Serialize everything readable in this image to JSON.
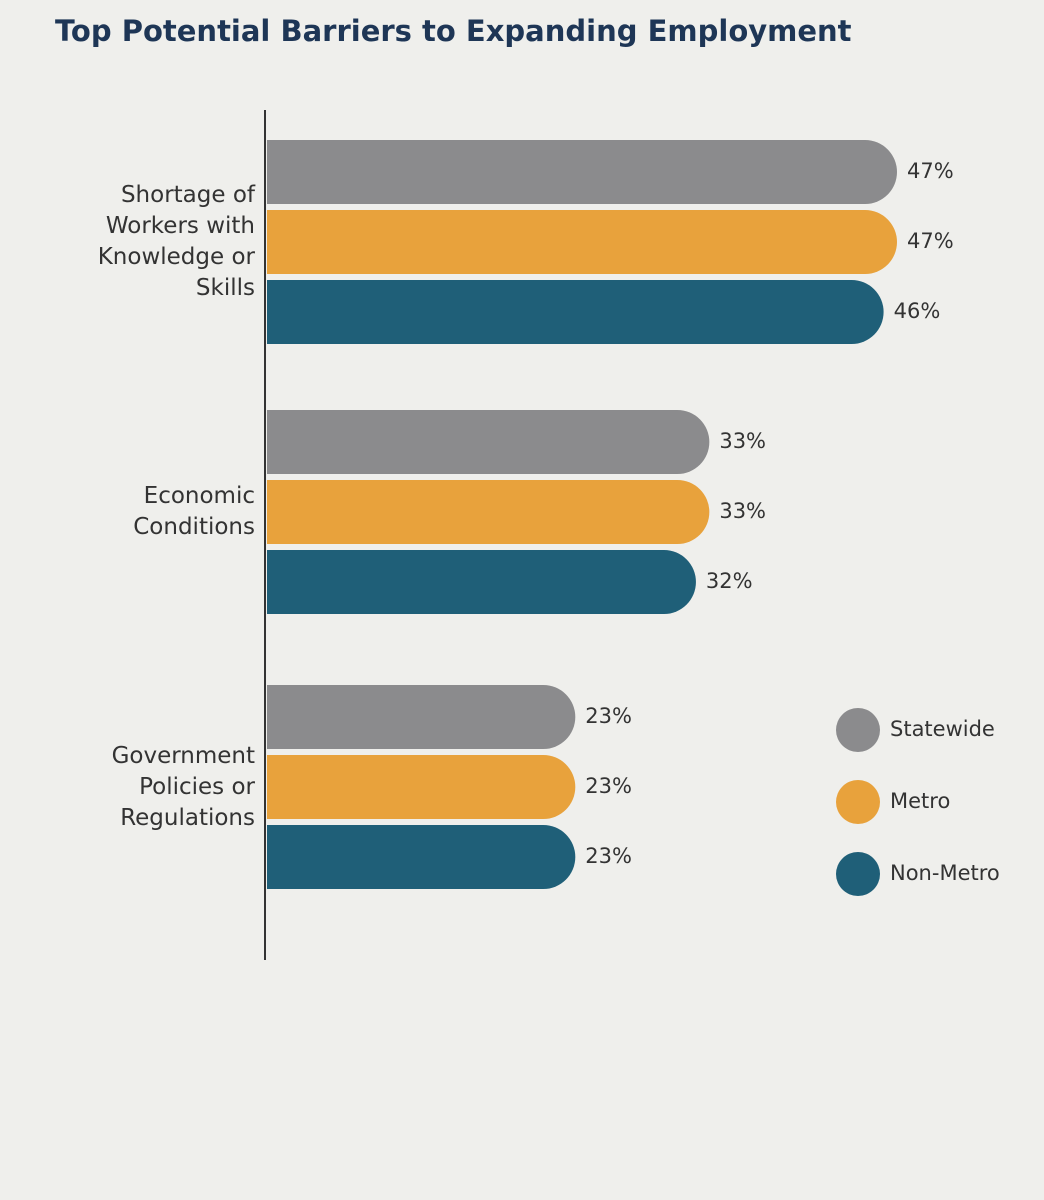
{
  "chart_data": {
    "type": "bar",
    "orientation": "horizontal",
    "title": "Top Potential Barriers to Expanding Employment",
    "categories": [
      "Shortage of Workers with Knowledge or Skills",
      "Economic Conditions",
      "Government Policies or Regulations"
    ],
    "series": [
      {
        "name": "Statewide",
        "color": "#8b8b8d",
        "values": [
          47,
          33,
          23
        ],
        "value_labels": [
          "47%",
          "33%",
          "23%"
        ]
      },
      {
        "name": "Metro",
        "color": "#e8a23c",
        "values": [
          47,
          33,
          23
        ],
        "value_labels": [
          "47%",
          "33%",
          "23%"
        ]
      },
      {
        "name": "Non-Metro",
        "color": "#1f5f78",
        "values": [
          46,
          32,
          23
        ],
        "value_labels": [
          "46%",
          "32%",
          "23%"
        ]
      }
    ],
    "legend": "lower right"
  }
}
